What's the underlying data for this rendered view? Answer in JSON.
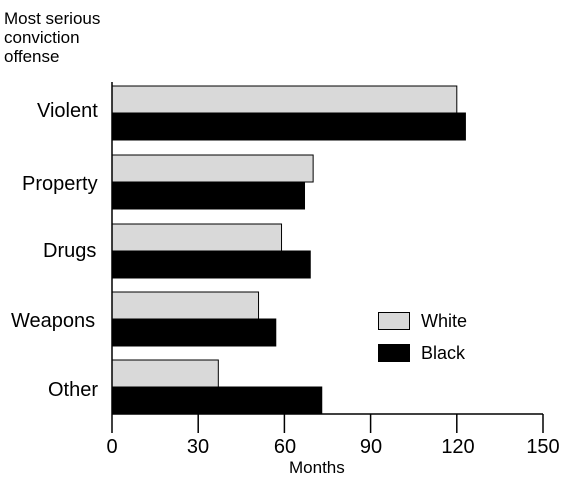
{
  "chart_data": {
    "type": "bar",
    "orientation": "horizontal",
    "ylabel_lines": [
      "Most serious",
      "conviction",
      "offense"
    ],
    "xlabel": "Months",
    "categories": [
      "Violent",
      "Property",
      "Drugs",
      "Weapons",
      "Other"
    ],
    "series": [
      {
        "name": "White",
        "color": "#d9d9d9",
        "values": [
          120,
          70,
          59,
          51,
          37
        ]
      },
      {
        "name": "Black",
        "color": "#000000",
        "values": [
          123,
          67,
          69,
          57,
          73
        ]
      }
    ],
    "xlim": [
      0,
      150
    ],
    "xticks": [
      "0",
      "30",
      "60",
      "90",
      "120",
      "150"
    ],
    "grid": false,
    "legend_position": "center-right"
  }
}
